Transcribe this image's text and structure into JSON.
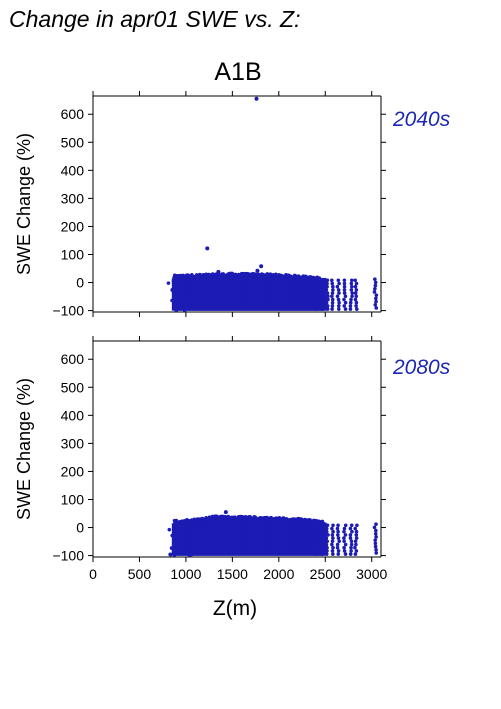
{
  "title": "Change in apr01 SWE vs. Z:",
  "scenario": "A1B",
  "colors": {
    "points": "#1c1cb4",
    "label": "#1c28b4"
  },
  "chart_data": [
    {
      "type": "scatter",
      "label": "2040s",
      "ylabel": "SWE Change (%)",
      "xlim": [
        0,
        3100
      ],
      "ylim": [
        -105,
        665
      ],
      "yticks": [
        -100,
        0,
        100,
        200,
        300,
        400,
        500,
        600
      ],
      "xticks": [
        0,
        500,
        1000,
        1500,
        2000,
        2500,
        3000
      ],
      "dense_band": {
        "x": [
          870,
          2500
        ],
        "y_bottom": -100,
        "y_top_profile": [
          [
            870,
            15
          ],
          [
            1100,
            18
          ],
          [
            1500,
            22
          ],
          [
            1900,
            20
          ],
          [
            2200,
            15
          ],
          [
            2500,
            5
          ]
        ]
      },
      "columns_x": [
        2400,
        2460,
        2520,
        2580,
        2640,
        2710,
        2780,
        2830,
        3040
      ],
      "outliers": [
        {
          "x": 1760,
          "y": 655
        },
        {
          "x": 1230,
          "y": 122
        },
        {
          "x": 1810,
          "y": 58
        },
        {
          "x": 1770,
          "y": 42
        },
        {
          "x": 1350,
          "y": 38
        }
      ]
    },
    {
      "type": "scatter",
      "label": "2080s",
      "ylabel": "SWE Change (%)",
      "xlabel": "Z(m)",
      "xlim": [
        0,
        3100
      ],
      "ylim": [
        -105,
        665
      ],
      "yticks": [
        -100,
        0,
        100,
        200,
        300,
        400,
        500,
        600
      ],
      "xticks": [
        0,
        500,
        1000,
        1500,
        2000,
        2500,
        3000
      ],
      "dense_band": {
        "x": [
          870,
          2500
        ],
        "y_bottom": -100,
        "y_top_profile": [
          [
            870,
            15
          ],
          [
            1100,
            20
          ],
          [
            1300,
            30
          ],
          [
            1700,
            28
          ],
          [
            2200,
            22
          ],
          [
            2500,
            10
          ]
        ]
      },
      "columns_x": [
        2400,
        2460,
        2520,
        2580,
        2640,
        2710,
        2780,
        2830,
        3040
      ],
      "outliers": [
        {
          "x": 1430,
          "y": 55
        },
        {
          "x": 1320,
          "y": 40
        }
      ]
    }
  ]
}
